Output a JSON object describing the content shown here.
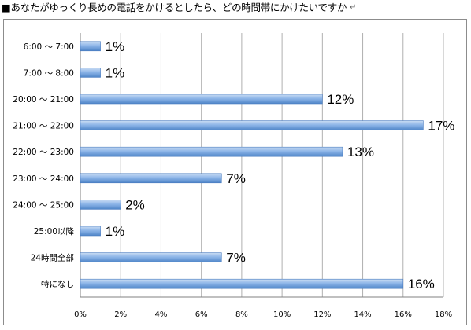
{
  "title": "■あなたがゆっくり長めの電話をかけるとしたら、どの時間帯にかけたいですか",
  "title_mark": "↵",
  "chart_data": {
    "type": "bar",
    "orientation": "horizontal",
    "categories": [
      "6:00 〜 7:00",
      "7:00 〜 8:00",
      "20:00 〜 21:00",
      "21:00 〜 22:00",
      "22:00 〜 23:00",
      "23:00 〜 24:00",
      "24:00 〜 25:00",
      "25:00以降",
      "24時間全部",
      "特になし"
    ],
    "values": [
      1,
      1,
      12,
      17,
      13,
      7,
      2,
      1,
      7,
      16
    ],
    "value_labels": [
      "1%",
      "1%",
      "12%",
      "17%",
      "13%",
      "7%",
      "2%",
      "1%",
      "7%",
      "16%"
    ],
    "xlim": [
      0,
      18
    ],
    "ticks": [
      0,
      2,
      4,
      6,
      8,
      10,
      12,
      14,
      16,
      18
    ],
    "tick_labels": [
      "0%",
      "2%",
      "4%",
      "6%",
      "8%",
      "10%",
      "12%",
      "14%",
      "16%",
      "18%"
    ],
    "grid": true,
    "bar_color": "#6d9fdd",
    "grid_color": "#b0b0b0"
  }
}
